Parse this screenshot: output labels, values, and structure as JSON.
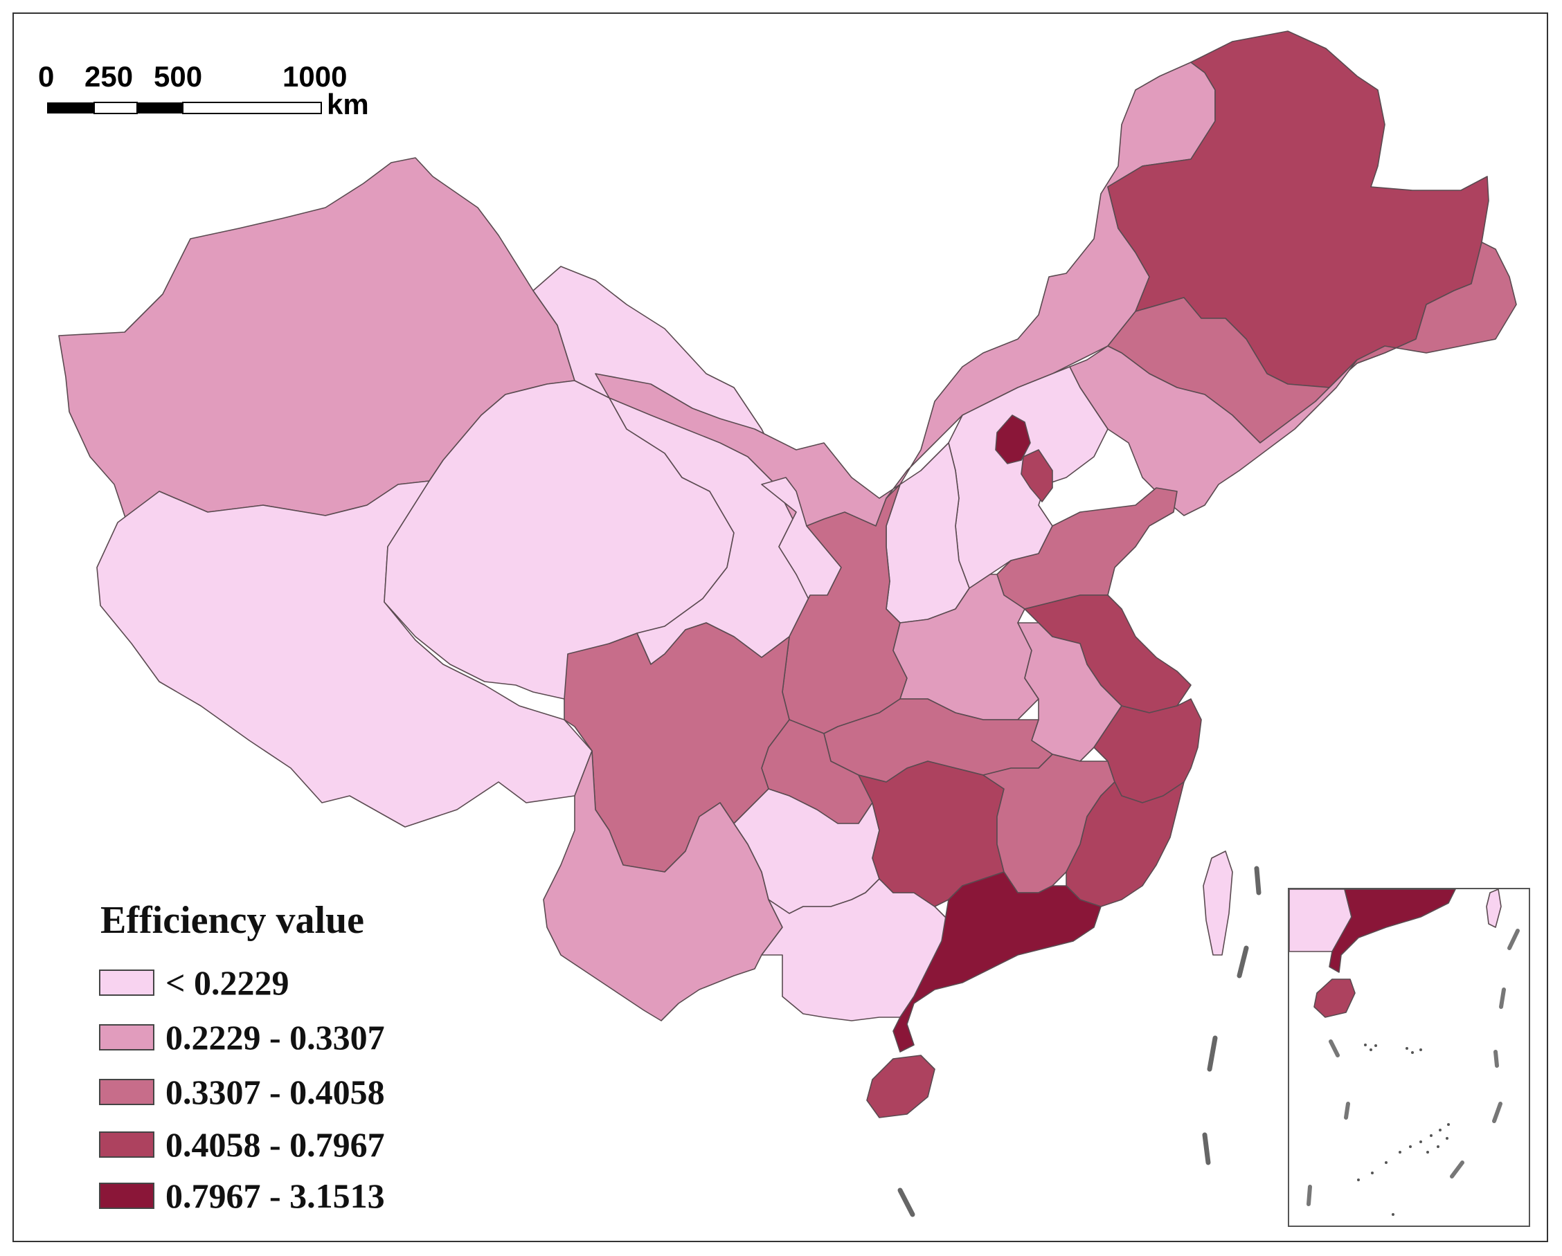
{
  "scale_bar": {
    "ticks": [
      "0",
      "250",
      "500",
      "1000"
    ],
    "unit": "km"
  },
  "legend": {
    "title": "Efficiency value",
    "classes": [
      {
        "label": "< 0.2229",
        "color": "#f8d3f0"
      },
      {
        "label": "0.2229 - 0.3307",
        "color": "#e19cbd"
      },
      {
        "label": "0.3307 - 0.4058",
        "color": "#c76d8a"
      },
      {
        "label": "0.4058 - 0.7967",
        "color": "#ad425f"
      },
      {
        "label": "0.7967 - 3.1513",
        "color": "#8a1638"
      }
    ]
  },
  "regions": [
    {
      "id": "xinjiang",
      "class": 1
    },
    {
      "id": "tibet",
      "class": 0
    },
    {
      "id": "qinghai",
      "class": 0
    },
    {
      "id": "gansu",
      "class": 0
    },
    {
      "id": "inner-mongolia",
      "class": 1
    },
    {
      "id": "heilongjiang",
      "class": 3
    },
    {
      "id": "jilin",
      "class": 2
    },
    {
      "id": "liaoning",
      "class": 1
    },
    {
      "id": "hebei",
      "class": 0
    },
    {
      "id": "beijing",
      "class": 4
    },
    {
      "id": "tianjin",
      "class": 3
    },
    {
      "id": "shanxi",
      "class": 0
    },
    {
      "id": "shaanxi",
      "class": 2
    },
    {
      "id": "ningxia",
      "class": 0
    },
    {
      "id": "shandong",
      "class": 2
    },
    {
      "id": "henan",
      "class": 1
    },
    {
      "id": "jiangsu",
      "class": 3
    },
    {
      "id": "anhui",
      "class": 1
    },
    {
      "id": "hubei",
      "class": 2
    },
    {
      "id": "chongqing",
      "class": 2
    },
    {
      "id": "sichuan",
      "class": 2
    },
    {
      "id": "yunnan",
      "class": 1
    },
    {
      "id": "guizhou",
      "class": 0
    },
    {
      "id": "guangxi",
      "class": 0
    },
    {
      "id": "hunan",
      "class": 3
    },
    {
      "id": "jiangxi",
      "class": 2
    },
    {
      "id": "zhejiang",
      "class": 3
    },
    {
      "id": "fujian",
      "class": 3
    },
    {
      "id": "guangdong",
      "class": 4
    },
    {
      "id": "hainan",
      "class": 3
    },
    {
      "id": "taiwan",
      "class": 0
    }
  ]
}
